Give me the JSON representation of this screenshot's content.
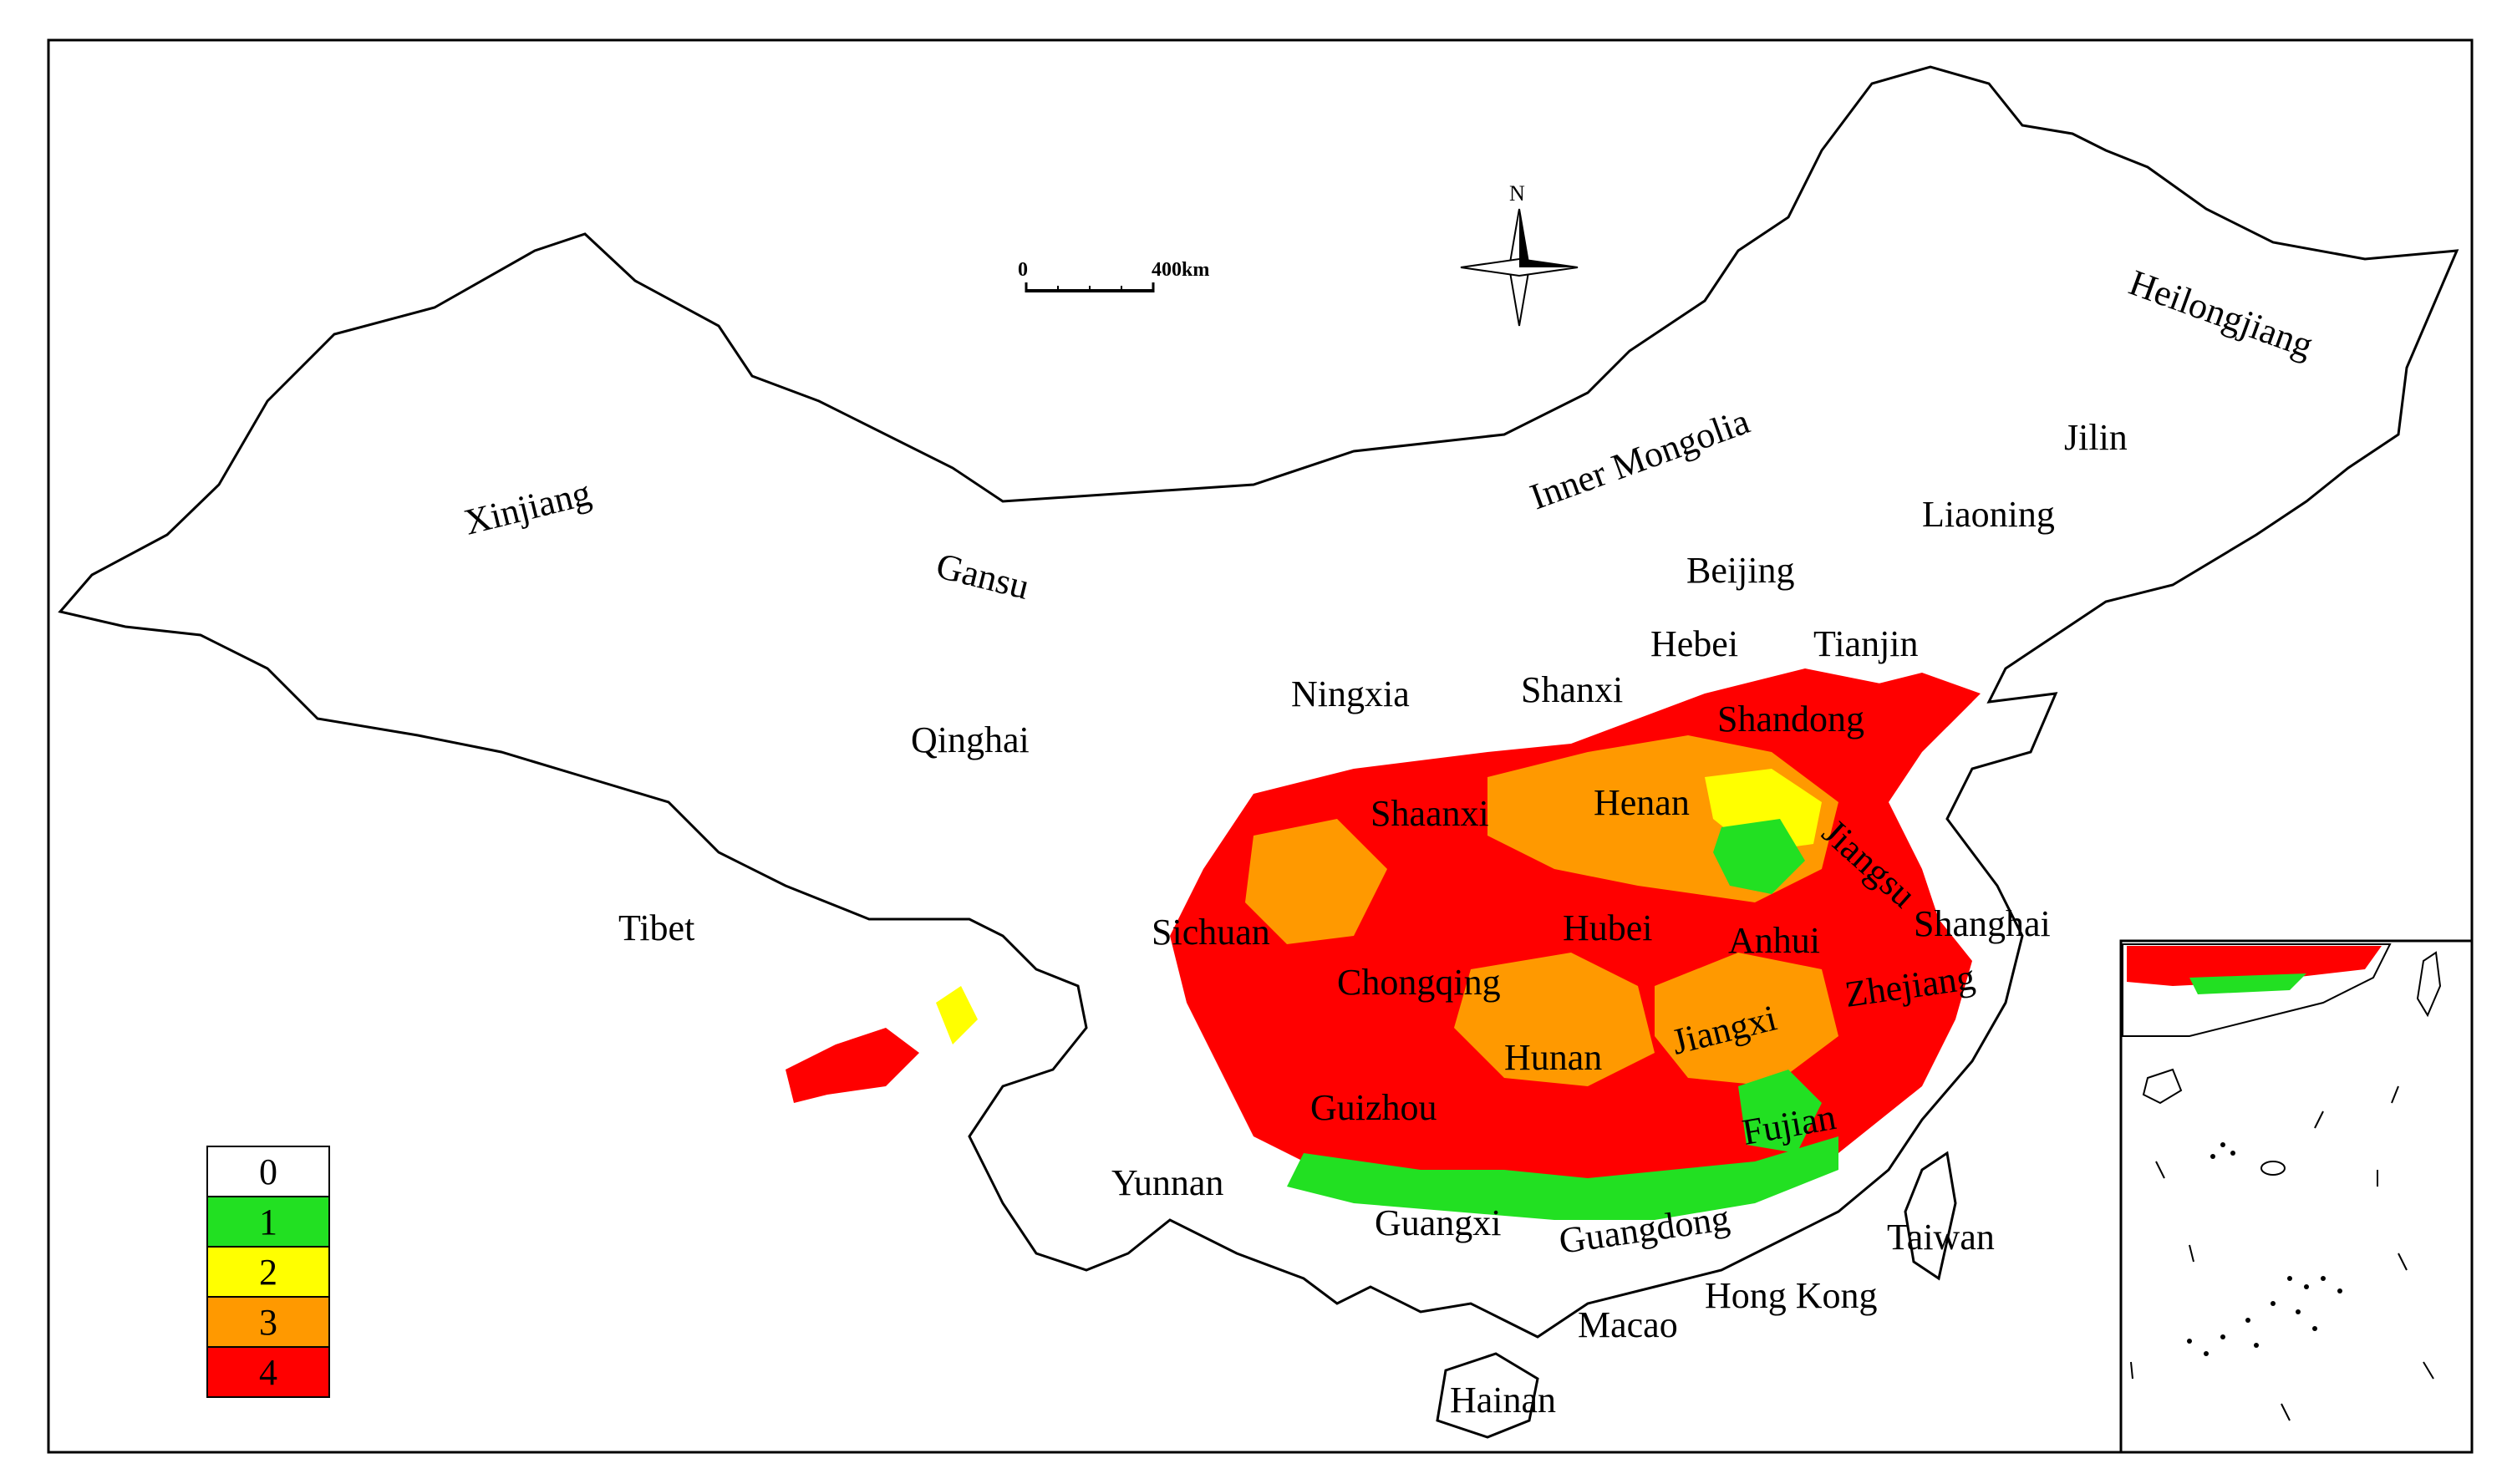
{
  "map": {
    "provinces": [
      "Xinjiang",
      "Tibet",
      "Qinghai",
      "Gansu",
      "Inner Mongolia",
      "Heilongjiang",
      "Jilin",
      "Liaoning",
      "Beijing",
      "Tianjin",
      "Hebei",
      "Shanxi",
      "Ningxia",
      "Shaanxi",
      "Henan",
      "Shandong",
      "Jiangsu",
      "Shanghai",
      "Anhui",
      "Hubei",
      "Sichuan",
      "Chongqing",
      "Guizhou",
      "Hunan",
      "Jiangxi",
      "Zhejiang",
      "Fujian",
      "Yunnan",
      "Guangxi",
      "Guangdong",
      "Taiwan",
      "Hong Kong",
      "Macao",
      "Hainan"
    ]
  },
  "scale_bar": {
    "start": "0",
    "end": "400km"
  },
  "north_arrow": {
    "label": "N"
  },
  "legend": {
    "classes": [
      {
        "value": "0",
        "color": "#ffffff"
      },
      {
        "value": "1",
        "color": "#22e022"
      },
      {
        "value": "2",
        "color": "#ffff00"
      },
      {
        "value": "3",
        "color": "#ff9900"
      },
      {
        "value": "4",
        "color": "#ff0000"
      }
    ]
  }
}
